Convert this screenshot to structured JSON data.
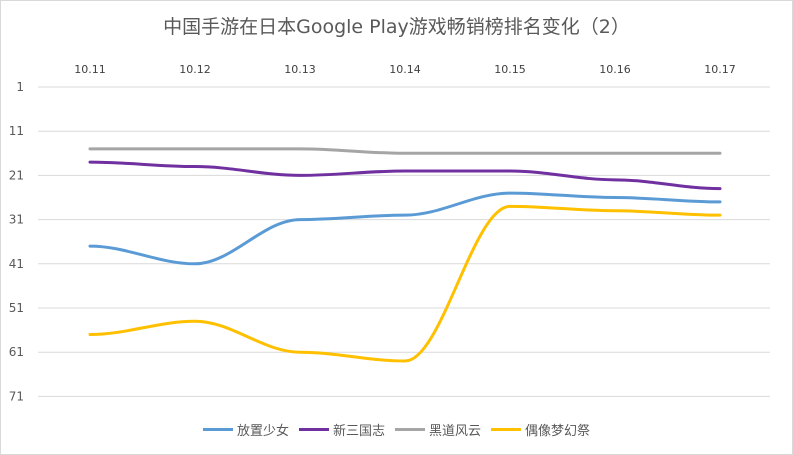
{
  "chart_data": {
    "type": "line",
    "title": "中国手游在日本Google Play游戏畅销榜排名变化（2）",
    "categories": [
      "10.11",
      "10.12",
      "10.13",
      "10.14",
      "10.15",
      "10.16",
      "10.17"
    ],
    "y_tick_labels": [
      "1",
      "11",
      "21",
      "31",
      "41",
      "51",
      "61",
      "71"
    ],
    "ylim": [
      1,
      76
    ],
    "y_reversed": true,
    "x_axis_position": "top",
    "grid": true,
    "legend_position": "bottom",
    "series": [
      {
        "name": "放置少女",
        "color": "#5b9bd5",
        "values": [
          37,
          41,
          31,
          30,
          25,
          26,
          27
        ]
      },
      {
        "name": "新三国志",
        "color": "#7030a0",
        "values": [
          18,
          19,
          21,
          20,
          20,
          22,
          24
        ]
      },
      {
        "name": "黑道风云",
        "color": "#a5a5a5",
        "values": [
          15,
          15,
          15,
          16,
          16,
          16,
          16
        ]
      },
      {
        "name": "偶像梦幻祭",
        "color": "#ffc000",
        "values": [
          57,
          54,
          61,
          63,
          28,
          29,
          30
        ]
      }
    ]
  }
}
